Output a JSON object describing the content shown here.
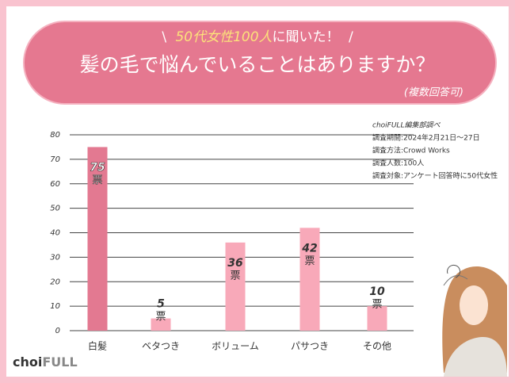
{
  "chart_data": {
    "type": "bar",
    "header": {
      "lead_open": "\\",
      "lead_highlight": "50代女性100人",
      "lead_rest": "に聞いた！",
      "lead_close": "/"
    },
    "title": "髪の毛で悩んでいることはありますか？",
    "subtitle": "(複数回答可)",
    "categories": [
      "白髪",
      "ベタつき",
      "ボリューム",
      "パサつき",
      "その他"
    ],
    "values": [
      75,
      5,
      36,
      42,
      10
    ],
    "value_unit": "票",
    "colors": [
      "#e37991",
      "#f8a9b9",
      "#f8a9b9",
      "#f8a9b9",
      "#f8a9b9"
    ],
    "ylim": [
      0,
      80
    ],
    "yticks": [
      0,
      10,
      20,
      30,
      40,
      50,
      60,
      70,
      80
    ],
    "grid": true,
    "notes": [
      "choiFULL編集部調べ",
      "調査期間:2024年2月21日〜27日",
      "調査方法:Crowd Works",
      "調査人数:100人",
      "調査対象:アンケート回答時に50代女性"
    ],
    "brand": {
      "part1": "choi",
      "part2": "FULL"
    }
  }
}
